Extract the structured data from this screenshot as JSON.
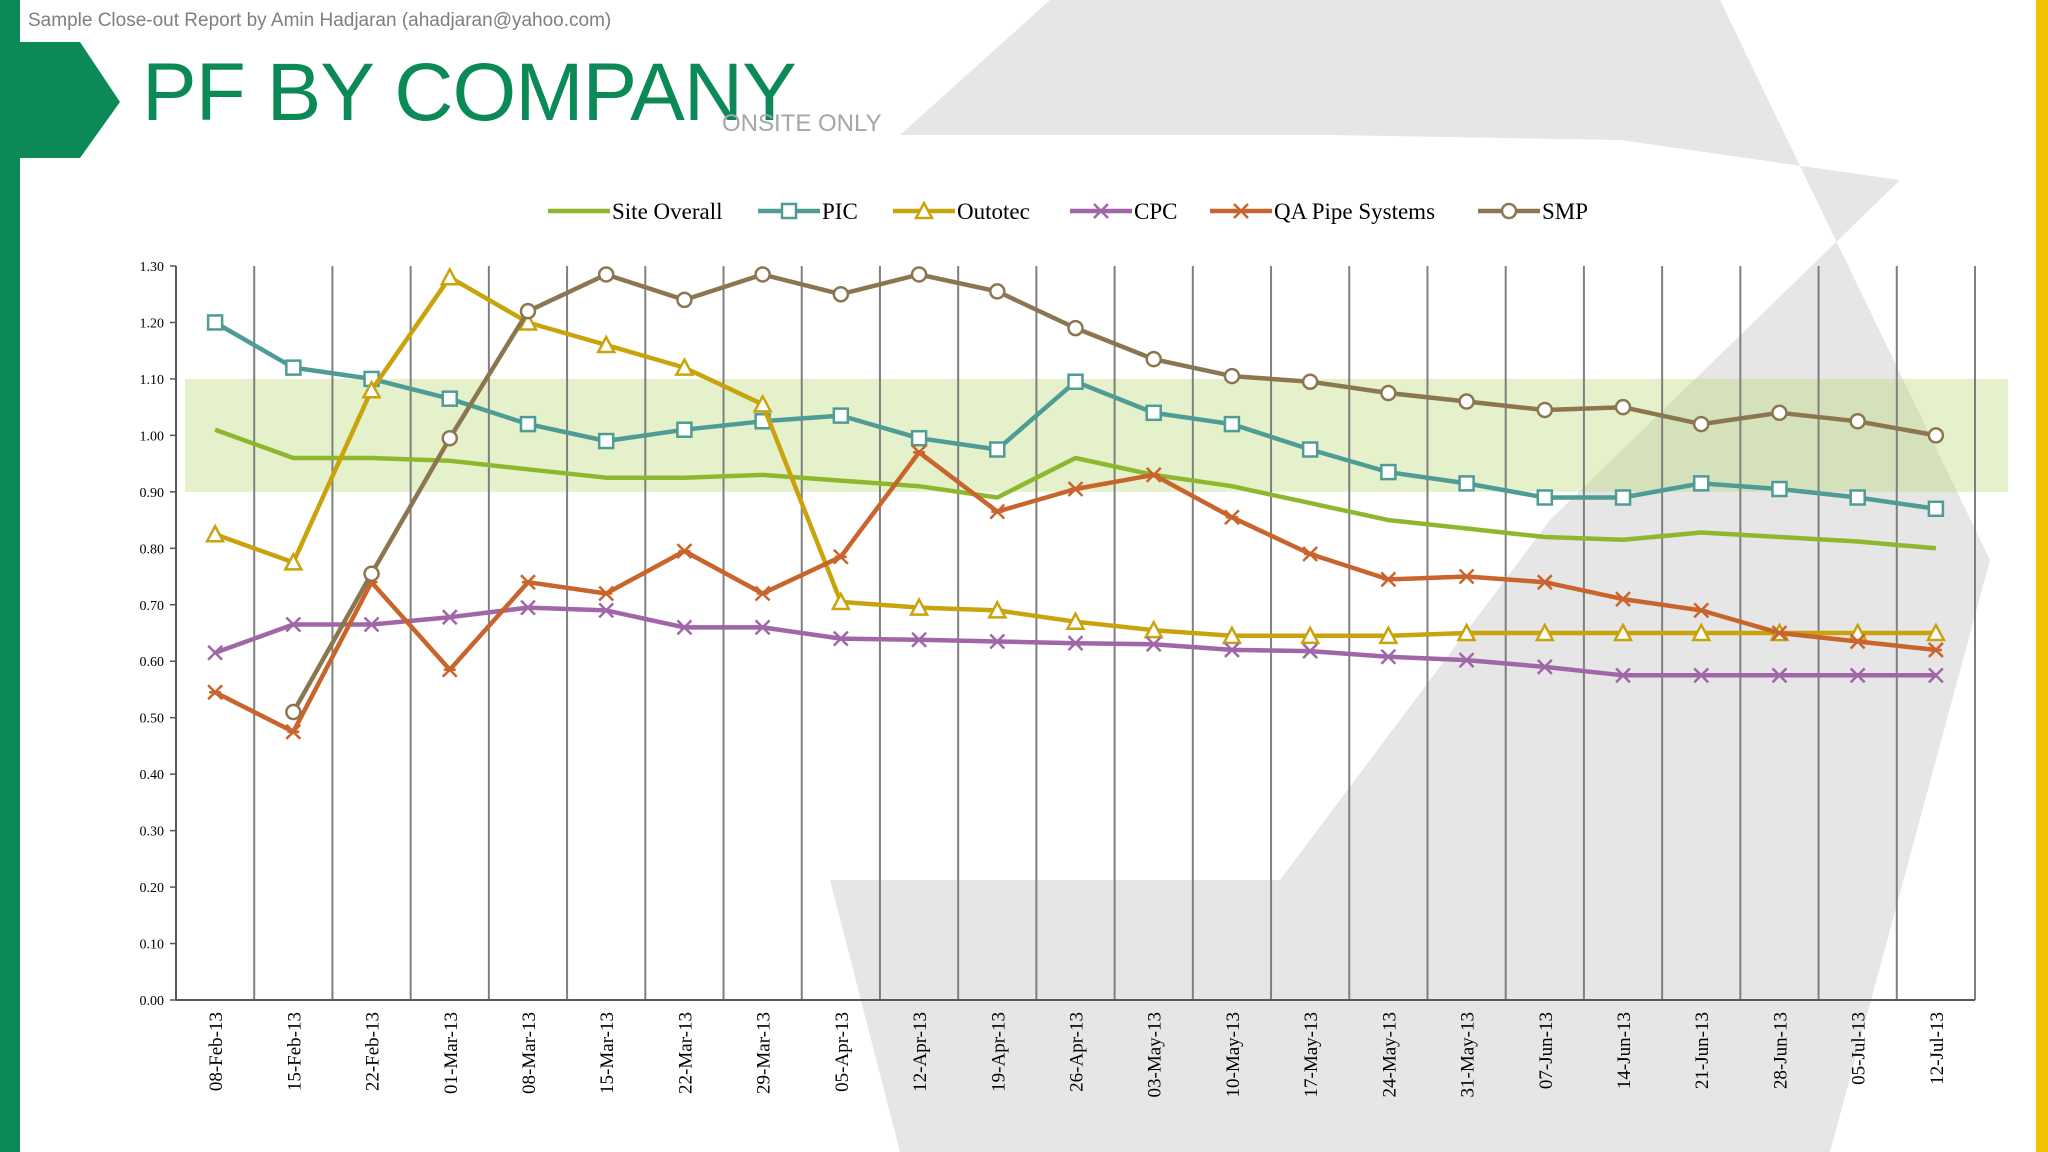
{
  "slide": {
    "header_note": "Sample Close-out Report by Amin Hadjaran (ahadjaran@yahoo.com)",
    "title": "PF BY COMPANY",
    "subtitle": "ONSITE ONLY",
    "accent_green": "#0b8a58",
    "accent_yellow": "#f2c200"
  },
  "chart_data": {
    "type": "line",
    "title": "PF BY COMPANY",
    "subtitle": "ONSITE ONLY",
    "xlabel": "",
    "ylabel": "",
    "ylim": [
      0,
      1.3
    ],
    "yticks": [
      "0.00",
      "0.10",
      "0.20",
      "0.30",
      "0.40",
      "0.50",
      "0.60",
      "0.70",
      "0.80",
      "0.90",
      "1.00",
      "1.10",
      "1.20",
      "1.30"
    ],
    "grid": "vertical",
    "legend_position": "top",
    "target_band": [
      0.9,
      1.1
    ],
    "categories": [
      "08-Feb-13",
      "15-Feb-13",
      "22-Feb-13",
      "01-Mar-13",
      "08-Mar-13",
      "15-Mar-13",
      "22-Mar-13",
      "29-Mar-13",
      "05-Apr-13",
      "12-Apr-13",
      "19-Apr-13",
      "26-Apr-13",
      "03-May-13",
      "10-May-13",
      "17-May-13",
      "24-May-13",
      "31-May-13",
      "07-Jun-13",
      "14-Jun-13",
      "21-Jun-13",
      "28-Jun-13",
      "05-Jul-13",
      "12-Jul-13"
    ],
    "series": [
      {
        "name": "Site Overall",
        "color": "#8db82e",
        "marker": "none",
        "values": [
          1.01,
          0.96,
          0.96,
          0.955,
          0.94,
          0.925,
          0.925,
          0.93,
          0.92,
          0.91,
          0.89,
          0.96,
          0.93,
          0.91,
          0.88,
          0.85,
          0.835,
          0.82,
          0.815,
          0.828,
          0.82,
          0.812,
          0.8
        ]
      },
      {
        "name": "PIC",
        "color": "#4f9b96",
        "marker": "square",
        "values": [
          1.2,
          1.12,
          1.1,
          1.065,
          1.02,
          0.99,
          1.01,
          1.025,
          1.035,
          0.995,
          0.975,
          1.095,
          1.04,
          1.02,
          0.975,
          0.935,
          0.915,
          0.89,
          0.89,
          0.915,
          0.905,
          0.89,
          0.87
        ]
      },
      {
        "name": "Outotec",
        "color": "#c9a30c",
        "marker": "triangle",
        "values": [
          0.825,
          0.775,
          1.08,
          1.28,
          1.2,
          1.16,
          1.12,
          1.055,
          0.705,
          0.695,
          0.69,
          0.67,
          0.655,
          0.645,
          0.645,
          0.645,
          0.65,
          0.65,
          0.65,
          0.65,
          0.65,
          0.65,
          0.65
        ]
      },
      {
        "name": "CPC",
        "color": "#a066a8",
        "marker": "x",
        "values": [
          0.615,
          0.665,
          0.665,
          0.678,
          0.695,
          0.69,
          0.66,
          0.66,
          0.64,
          0.638,
          0.635,
          0.632,
          0.63,
          0.62,
          0.618,
          0.608,
          0.602,
          0.59,
          0.575,
          0.575,
          0.575,
          0.575,
          0.575
        ]
      },
      {
        "name": "QA Pipe Systems",
        "color": "#c8642c",
        "marker": "star",
        "values": [
          0.545,
          0.475,
          0.74,
          0.585,
          0.74,
          0.72,
          0.795,
          0.72,
          0.785,
          0.97,
          0.865,
          0.905,
          0.93,
          0.855,
          0.79,
          0.745,
          0.75,
          0.74,
          0.71,
          0.69,
          0.65,
          0.635,
          0.62
        ]
      },
      {
        "name": "SMP",
        "color": "#8b7650",
        "marker": "circle",
        "values": [
          null,
          0.51,
          0.755,
          0.995,
          1.22,
          1.285,
          1.24,
          1.285,
          1.25,
          1.285,
          1.255,
          1.19,
          1.135,
          1.105,
          1.095,
          1.075,
          1.06,
          1.045,
          1.05,
          1.02,
          1.04,
          1.025,
          1.0
        ]
      }
    ]
  }
}
